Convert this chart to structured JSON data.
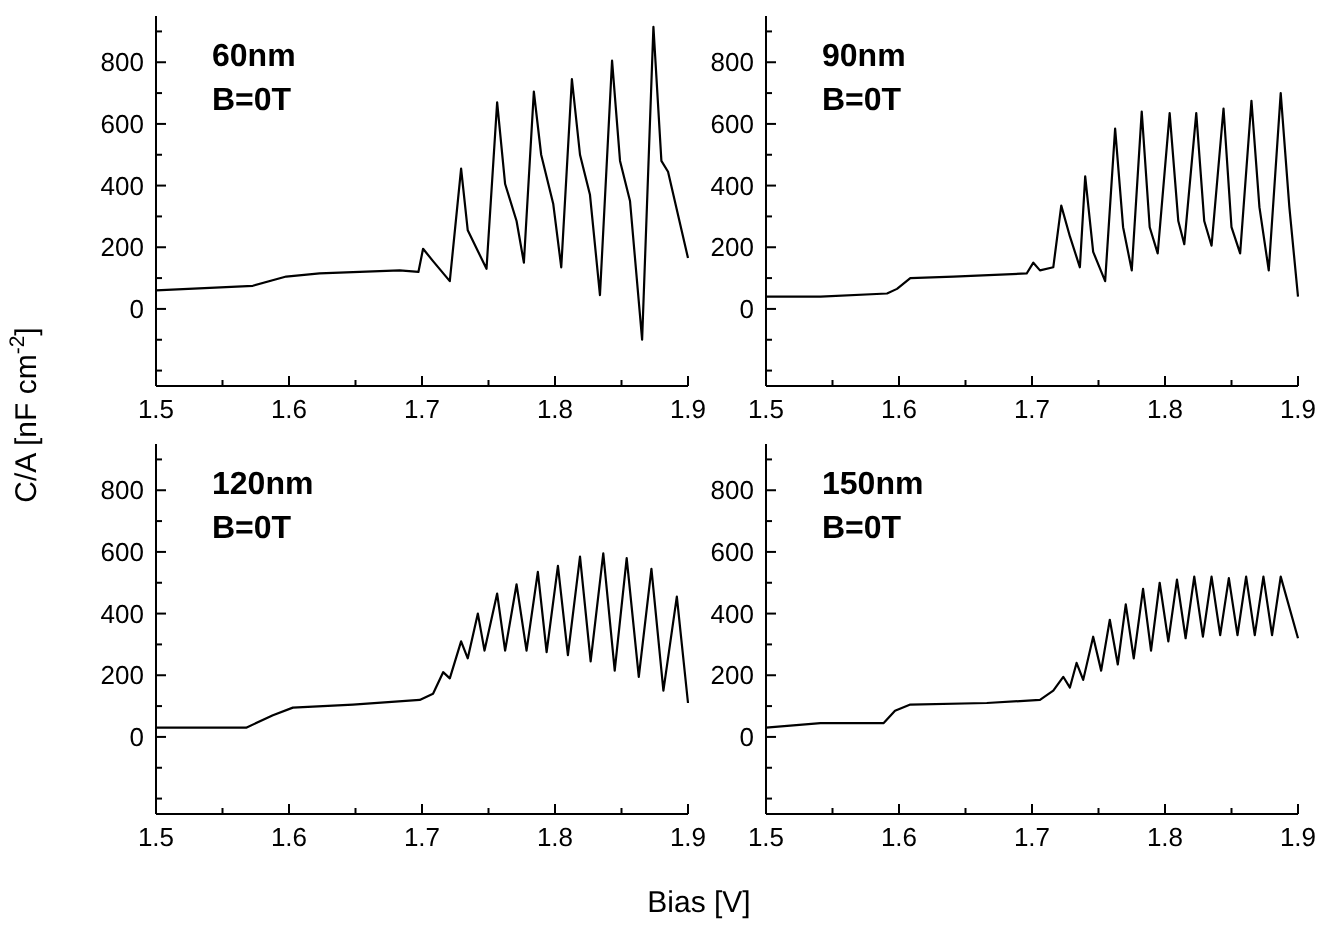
{
  "chart_data": [
    {
      "type": "line",
      "title": "60nm",
      "subtitle": "B=0T",
      "ylabel": "C/A [nF cm$^{-2}$]",
      "xlim": [
        1.5,
        1.9
      ],
      "ylim": [
        -250,
        950
      ],
      "xticks": [
        1.5,
        {
          "value": 1.55,
          "label": null
        },
        1.6,
        {
          "value": 1.65,
          "label": null
        },
        1.7,
        {
          "value": 1.75,
          "label": null
        },
        1.8,
        {
          "value": 1.85,
          "label": null
        },
        1.9
      ],
      "yticks": [
        {
          "value": -200,
          "label": null
        },
        {
          "value": -100,
          "label": null
        },
        0,
        {
          "value": 100,
          "label": null
        },
        200,
        {
          "value": 300,
          "label": null
        },
        400,
        {
          "value": 500,
          "label": null
        },
        600,
        {
          "value": 700,
          "label": null
        },
        800,
        {
          "value": 900,
          "label": null
        }
      ],
      "series": [
        {
          "color": "#000000",
          "x": [
            1.5,
            1.5728,
            1.5979,
            1.623,
            1.6832,
            1.6973,
            1.7008,
            1.7083,
            1.7209,
            1.7294,
            1.7344,
            1.7485,
            1.7565,
            1.7625,
            1.7711,
            1.7766,
            1.7841,
            1.7896,
            1.7987,
            1.8047,
            1.8127,
            1.8188,
            1.8263,
            1.8338,
            1.8429,
            1.8489,
            1.8564,
            1.8655,
            1.874,
            1.88,
            1.885,
            1.894,
            1.8966,
            1.9
          ],
          "values": [
            60,
            75,
            105,
            115,
            125,
            120,
            195,
            155,
            90,
            455,
            255,
            130,
            670,
            405,
            285,
            150,
            705,
            500,
            340,
            135,
            745,
            500,
            370,
            45,
            805,
            480,
            350,
            -100,
            915,
            480,
            445,
            null,
            null,
            165
          ]
        }
      ]
    },
    {
      "type": "line",
      "title": "90nm",
      "subtitle": "B=0T",
      "xlim": [
        1.5,
        1.9
      ],
      "ylim": [
        -250,
        950
      ],
      "xticks": [
        1.5,
        {
          "value": 1.55,
          "label": null
        },
        1.6,
        {
          "value": 1.65,
          "label": null
        },
        1.7,
        {
          "value": 1.75,
          "label": null
        },
        1.8,
        {
          "value": 1.85,
          "label": null
        },
        1.9
      ],
      "yticks": [
        {
          "value": -200,
          "label": null
        },
        {
          "value": -100,
          "label": null
        },
        0,
        {
          "value": 100,
          "label": null
        },
        200,
        {
          "value": 300,
          "label": null
        },
        400,
        {
          "value": 500,
          "label": null
        },
        600,
        {
          "value": 700,
          "label": null
        },
        800,
        {
          "value": 900,
          "label": null
        }
      ],
      "series": [
        {
          "color": "#000000",
          "x": [
            1.5,
            1.541,
            1.591,
            1.5985,
            1.6085,
            1.641,
            1.696,
            1.701,
            1.706,
            1.716,
            1.722,
            1.7285,
            1.736,
            1.74,
            1.746,
            1.755,
            1.7625,
            1.7685,
            1.775,
            1.7825,
            1.7885,
            1.7945,
            1.8035,
            1.81,
            1.8145,
            1.8235,
            1.8295,
            1.835,
            1.844,
            1.85,
            1.8565,
            1.865,
            1.871,
            1.878,
            1.887,
            1.8935,
            1.9
          ],
          "values": [
            40,
            40,
            50,
            65,
            100,
            105,
            115,
            150,
            125,
            135,
            335,
            235,
            135,
            430,
            185,
            90,
            585,
            265,
            125,
            640,
            265,
            180,
            635,
            285,
            210,
            635,
            285,
            205,
            650,
            265,
            180,
            675,
            330,
            125,
            700,
            330,
            40
          ]
        }
      ]
    },
    {
      "type": "line",
      "title": "120nm",
      "subtitle": "B=0T",
      "xlabel": "Bias [V]",
      "xlim": [
        1.5,
        1.9
      ],
      "ylim": [
        -250,
        950
      ],
      "xticks": [
        1.5,
        {
          "value": 1.55,
          "label": null
        },
        1.6,
        {
          "value": 1.65,
          "label": null
        },
        1.7,
        {
          "value": 1.75,
          "label": null
        },
        1.8,
        {
          "value": 1.85,
          "label": null
        },
        1.9
      ],
      "yticks": [
        {
          "value": -200,
          "label": null
        },
        {
          "value": -100,
          "label": null
        },
        0,
        {
          "value": 100,
          "label": null
        },
        200,
        {
          "value": 300,
          "label": null
        },
        400,
        {
          "value": 500,
          "label": null
        },
        600,
        {
          "value": 700,
          "label": null
        },
        800,
        {
          "value": 900,
          "label": null
        }
      ],
      "series": [
        {
          "color": "#000000",
          "x": [
            1.5,
            1.5678,
            1.5879,
            1.6029,
            1.6481,
            1.6983,
            1.7083,
            1.7159,
            1.7209,
            1.7294,
            1.7344,
            1.742,
            1.747,
            1.7565,
            1.7625,
            1.7711,
            1.7786,
            1.7871,
            1.7937,
            1.8022,
            1.8097,
            1.8188,
            1.8268,
            1.8363,
            1.8449,
            1.8539,
            1.863,
            1.8725,
            1.8815,
            1.8916,
            1.9
          ],
          "values": [
            30,
            30,
            70,
            95,
            105,
            120,
            140,
            210,
            190,
            310,
            255,
            400,
            280,
            465,
            280,
            495,
            280,
            535,
            275,
            555,
            265,
            585,
            245,
            595,
            215,
            580,
            195,
            545,
            150,
            455,
            110
          ]
        }
      ]
    },
    {
      "type": "line",
      "title": "150nm",
      "subtitle": "B=0T",
      "xlim": [
        1.5,
        1.9
      ],
      "ylim": [
        -250,
        950
      ],
      "xticks": [
        1.5,
        {
          "value": 1.55,
          "label": null
        },
        1.6,
        {
          "value": 1.65,
          "label": null
        },
        1.7,
        {
          "value": 1.75,
          "label": null
        },
        1.8,
        {
          "value": 1.85,
          "label": null
        },
        1.9
      ],
      "yticks": [
        {
          "value": -200,
          "label": null
        },
        {
          "value": -100,
          "label": null
        },
        0,
        {
          "value": 100,
          "label": null
        },
        200,
        {
          "value": 300,
          "label": null
        },
        400,
        {
          "value": 500,
          "label": null
        },
        600,
        {
          "value": 700,
          "label": null
        },
        800,
        {
          "value": 900,
          "label": null
        }
      ],
      "series": [
        {
          "color": "#000000",
          "x": [
            1.5,
            1.541,
            1.5885,
            1.597,
            1.6085,
            1.666,
            1.706,
            1.716,
            1.7235,
            1.7285,
            1.7335,
            1.7385,
            1.746,
            1.752,
            1.7585,
            1.7645,
            1.7705,
            1.7765,
            1.7835,
            1.7895,
            1.796,
            1.8025,
            1.809,
            1.8155,
            1.822,
            1.8285,
            1.835,
            1.8415,
            1.848,
            1.8545,
            1.861,
            1.8675,
            1.874,
            1.8805,
            1.887,
            1.9
          ],
          "values": [
            30,
            45,
            45,
            85,
            105,
            110,
            120,
            150,
            195,
            160,
            240,
            185,
            325,
            215,
            380,
            235,
            430,
            255,
            480,
            280,
            500,
            310,
            510,
            320,
            520,
            325,
            520,
            330,
            515,
            330,
            520,
            330,
            520,
            330,
            520,
            320
          ]
        }
      ]
    }
  ]
}
